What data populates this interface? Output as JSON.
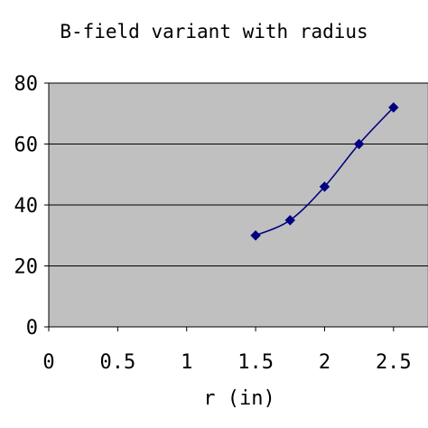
{
  "chart_data": {
    "type": "line",
    "title": "B-field variant with radius",
    "xlabel": "r (in)",
    "ylabel": "",
    "xlim": [
      0,
      2.75
    ],
    "ylim": [
      0,
      80
    ],
    "x_ticks": [
      "0",
      "0.5",
      "1",
      "1.5",
      "2",
      "2.5"
    ],
    "x_tick_values": [
      0,
      0.5,
      1,
      1.5,
      2,
      2.5
    ],
    "y_ticks": [
      "0",
      "20",
      "40",
      "60",
      "80"
    ],
    "y_tick_values": [
      0,
      20,
      40,
      60,
      80
    ],
    "grid": "horizontal",
    "legend": "none",
    "series": [
      {
        "x": [
          1.5,
          1.75,
          2.0,
          2.25,
          2.5
        ],
        "y": [
          30,
          35,
          46,
          60,
          72
        ],
        "color": "#000080",
        "marker": "diamond",
        "smooth": true
      }
    ],
    "plot_background": "#c0c0c0"
  }
}
